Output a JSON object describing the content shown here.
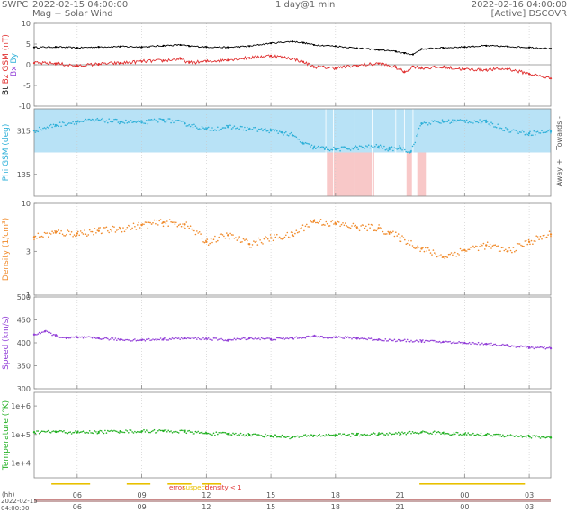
{
  "header": {
    "agency": "SWPC",
    "start_time": "2022-02-15 04:00:00",
    "subtitle": "Mag + Solar Wind",
    "span": "1 day@1 min",
    "end_time": "2022-02-16 04:00:00",
    "source": "[Active] DSCOVR"
  },
  "colors": {
    "bt": "#000000",
    "bz": "#e03030",
    "phi": "#2fb0d8",
    "phi_band": "#b8e2f6",
    "phi_away": "#f8c8c8",
    "density": "#f08a2a",
    "speed": "#9340d8",
    "temperature": "#22b022",
    "grid": "#c8c8c8",
    "axis_text": "#555555"
  },
  "chart_data": [
    {
      "type": "line",
      "panel": "magnetic field",
      "ylabel": "Bt Bz GSM (nT)",
      "ylim": [
        -10,
        10
      ],
      "yticks": [
        -10,
        -5,
        0,
        5,
        10
      ],
      "ylabel_legend": [
        "Bt",
        "Bz GSM (nT)",
        "Bx",
        "By"
      ],
      "x_hours_since_start": [
        0,
        1,
        2,
        3,
        4,
        5,
        6,
        6.8,
        7.2,
        8,
        9,
        10,
        11,
        12,
        12.5,
        13,
        14,
        15,
        16,
        16.8,
        17.2,
        17.6,
        18,
        19,
        20,
        21,
        22,
        23,
        24
      ],
      "series": [
        {
          "name": "Bt",
          "values": [
            4.2,
            4.3,
            4.1,
            4.3,
            4.4,
            4.3,
            4.6,
            4.8,
            4.5,
            4.3,
            4.2,
            4.5,
            5.2,
            5.6,
            5.3,
            4.8,
            4.5,
            4.0,
            3.6,
            3.2,
            2.8,
            2.5,
            3.8,
            4.1,
            4.3,
            4.6,
            4.4,
            4.2,
            3.9
          ]
        },
        {
          "name": "Bz GSM",
          "values": [
            0.4,
            0.3,
            -0.3,
            0.2,
            0.4,
            0.8,
            1.0,
            1.4,
            0.5,
            0.8,
            1.2,
            1.7,
            2.2,
            1.5,
            0.7,
            -0.5,
            -0.8,
            -0.2,
            0.3,
            -0.6,
            -1.8,
            -0.4,
            -0.8,
            -0.6,
            -1.1,
            -1.2,
            -1.0,
            -2.2,
            -3.3
          ]
        }
      ]
    },
    {
      "type": "scatter",
      "panel": "phi",
      "ylabel": "Phi GSM (deg)",
      "ylim": [
        45,
        405
      ],
      "yticks": [
        135,
        315
      ],
      "right_labels": [
        "Towards -",
        "Away +"
      ],
      "x_hours_since_start": [
        0,
        1,
        2,
        3,
        4,
        5,
        6,
        7,
        8,
        9,
        10,
        11,
        11.5,
        12,
        12.5,
        13,
        13.5,
        14,
        15,
        16,
        16.5,
        17,
        17.5,
        18,
        19,
        20,
        21,
        22,
        23,
        24
      ],
      "values": [
        315,
        338,
        352,
        358,
        352,
        348,
        360,
        345,
        320,
        330,
        322,
        315,
        308,
        296,
        262,
        246,
        242,
        238,
        245,
        250,
        238,
        246,
        228,
        345,
        352,
        356,
        350,
        318,
        304,
        312
      ]
    },
    {
      "type": "scatter",
      "panel": "density",
      "ylabel": "Density (1/cm³)",
      "yscale": "log",
      "ylim": [
        1,
        10
      ],
      "yticks": [
        1,
        3,
        10
      ],
      "x_hours_since_start": [
        0,
        1,
        2,
        3,
        4,
        5,
        6,
        7,
        8,
        9,
        10,
        11,
        12,
        13,
        14,
        15,
        16,
        16.5,
        17,
        18,
        19,
        20,
        21,
        22,
        23,
        24
      ],
      "values": [
        4.3,
        4.8,
        4.7,
        5.0,
        5.3,
        5.8,
        6.2,
        5.9,
        3.8,
        4.5,
        3.6,
        4.2,
        4.5,
        6.4,
        6.0,
        5.5,
        5.4,
        4.8,
        4.2,
        3.2,
        2.6,
        3.1,
        3.5,
        3.0,
        3.8,
        4.6
      ]
    },
    {
      "type": "scatter",
      "panel": "speed",
      "ylabel": "Speed (km/s)",
      "ylim": [
        300,
        500
      ],
      "yticks": [
        300,
        350,
        400,
        450,
        500
      ],
      "x_hours_since_start": [
        0,
        0.5,
        1,
        1.5,
        2,
        3,
        4,
        5,
        6,
        7,
        8,
        9,
        10,
        11,
        12,
        13,
        14,
        15,
        16,
        17,
        18,
        19,
        20,
        21,
        22,
        23,
        24
      ],
      "values": [
        418,
        425,
        416,
        410,
        412,
        410,
        407,
        406,
        408,
        410,
        409,
        406,
        410,
        408,
        410,
        414,
        412,
        410,
        407,
        405,
        404,
        402,
        400,
        398,
        394,
        390,
        388
      ]
    },
    {
      "type": "scatter",
      "panel": "temperature",
      "ylabel": "Temperature (°K)",
      "yscale": "log",
      "ylim": [
        3000,
        3000000
      ],
      "yticks": [
        10000,
        100000,
        1000000
      ],
      "ytick_labels": [
        "1e+4",
        "1e+5",
        "1e+6"
      ],
      "x_hours_since_start": [
        0,
        1,
        2,
        3,
        4,
        5,
        6,
        7,
        8,
        9,
        10,
        11,
        12,
        13,
        14,
        15,
        16,
        17,
        18,
        19,
        20,
        21,
        22,
        23,
        24
      ],
      "values": [
        120000,
        125000,
        118000,
        122000,
        130000,
        128000,
        132000,
        125000,
        110000,
        105000,
        98000,
        90000,
        80000,
        92000,
        96000,
        98000,
        102000,
        108000,
        120000,
        112000,
        102000,
        98000,
        92000,
        85000,
        78000
      ]
    }
  ],
  "x_axis": {
    "unit_label": "(hh)",
    "tick_hours_since_start": [
      2,
      5,
      8,
      11,
      14,
      17,
      20,
      23
    ],
    "tick_labels": [
      "06",
      "09",
      "12",
      "15",
      "18",
      "21",
      "00",
      "03"
    ],
    "footer_date": "2022-02-15",
    "footer_time": "04:00:00"
  },
  "flags": {
    "labels": [
      "error",
      "suspect",
      "density < 1"
    ],
    "colors": [
      "#e03030",
      "#e8c000",
      "#e03030"
    ]
  }
}
